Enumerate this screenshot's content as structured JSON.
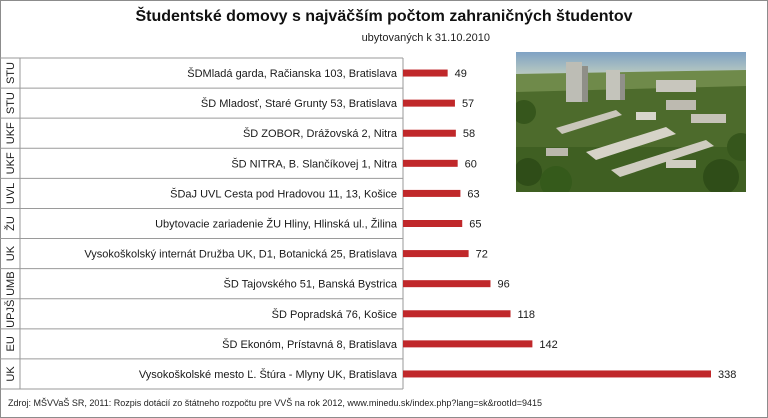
{
  "title": "Študentské domovy s najväčším počtom zahraničných študentov",
  "subtitle": "ubytovaných k 31.10.2010",
  "source": "Zdroj: MŠVVaŠ SR, 2011: Rozpis dotácií zo štátneho rozpočtu pre VVŠ na rok 2012, www.minedu.sk/index.php?lang=sk&rootId=9415",
  "colors": {
    "bar": "#c0282a",
    "grid": "#9a9a9a",
    "frame": "#8c8c8c"
  },
  "photo": {
    "icon": "campus-aerial-photo"
  },
  "chart_data": {
    "type": "bar",
    "orientation": "horizontal",
    "title": "Študentské domovy s najväčším počtom zahraničných študentov",
    "subtitle": "ubytovaných k 31.10.2010",
    "xlim": [
      0,
      338
    ],
    "grid": false,
    "legend": "none",
    "groups": [
      "STU",
      "STU",
      "UKF",
      "UKF",
      "UVL",
      "ŽU",
      "UK",
      "UMB",
      "UPJŠ",
      "EU",
      "UK"
    ],
    "categories": [
      "ŠDMladá garda, Račianska 103, Bratislava",
      "ŠD Mladosť, Staré Grunty 53, Bratislava",
      "ŠD ZOBOR, Drážovská 2, Nitra",
      "ŠD NITRA, B. Slančíkovej 1, Nitra",
      "ŠDaJ UVL Cesta pod Hradovou  11, 13, Košice",
      "Ubytovacie zariadenie ŽU Hliny, Hlinská ul., Žilina",
      "Vysokoškolský internát Družba UK, D1, Botanická 25, Bratislava",
      "ŠD Tajovského 51, Banská Bystrica",
      "ŠD Popradská 76, Košice",
      "ŠD Ekonóm, Prístavná 8, Bratislava",
      "Vysokoškolské mesto Ľ. Štúra - Mlyny UK, Bratislava"
    ],
    "values": [
      49,
      57,
      58,
      60,
      63,
      65,
      72,
      96,
      118,
      142,
      338
    ]
  }
}
